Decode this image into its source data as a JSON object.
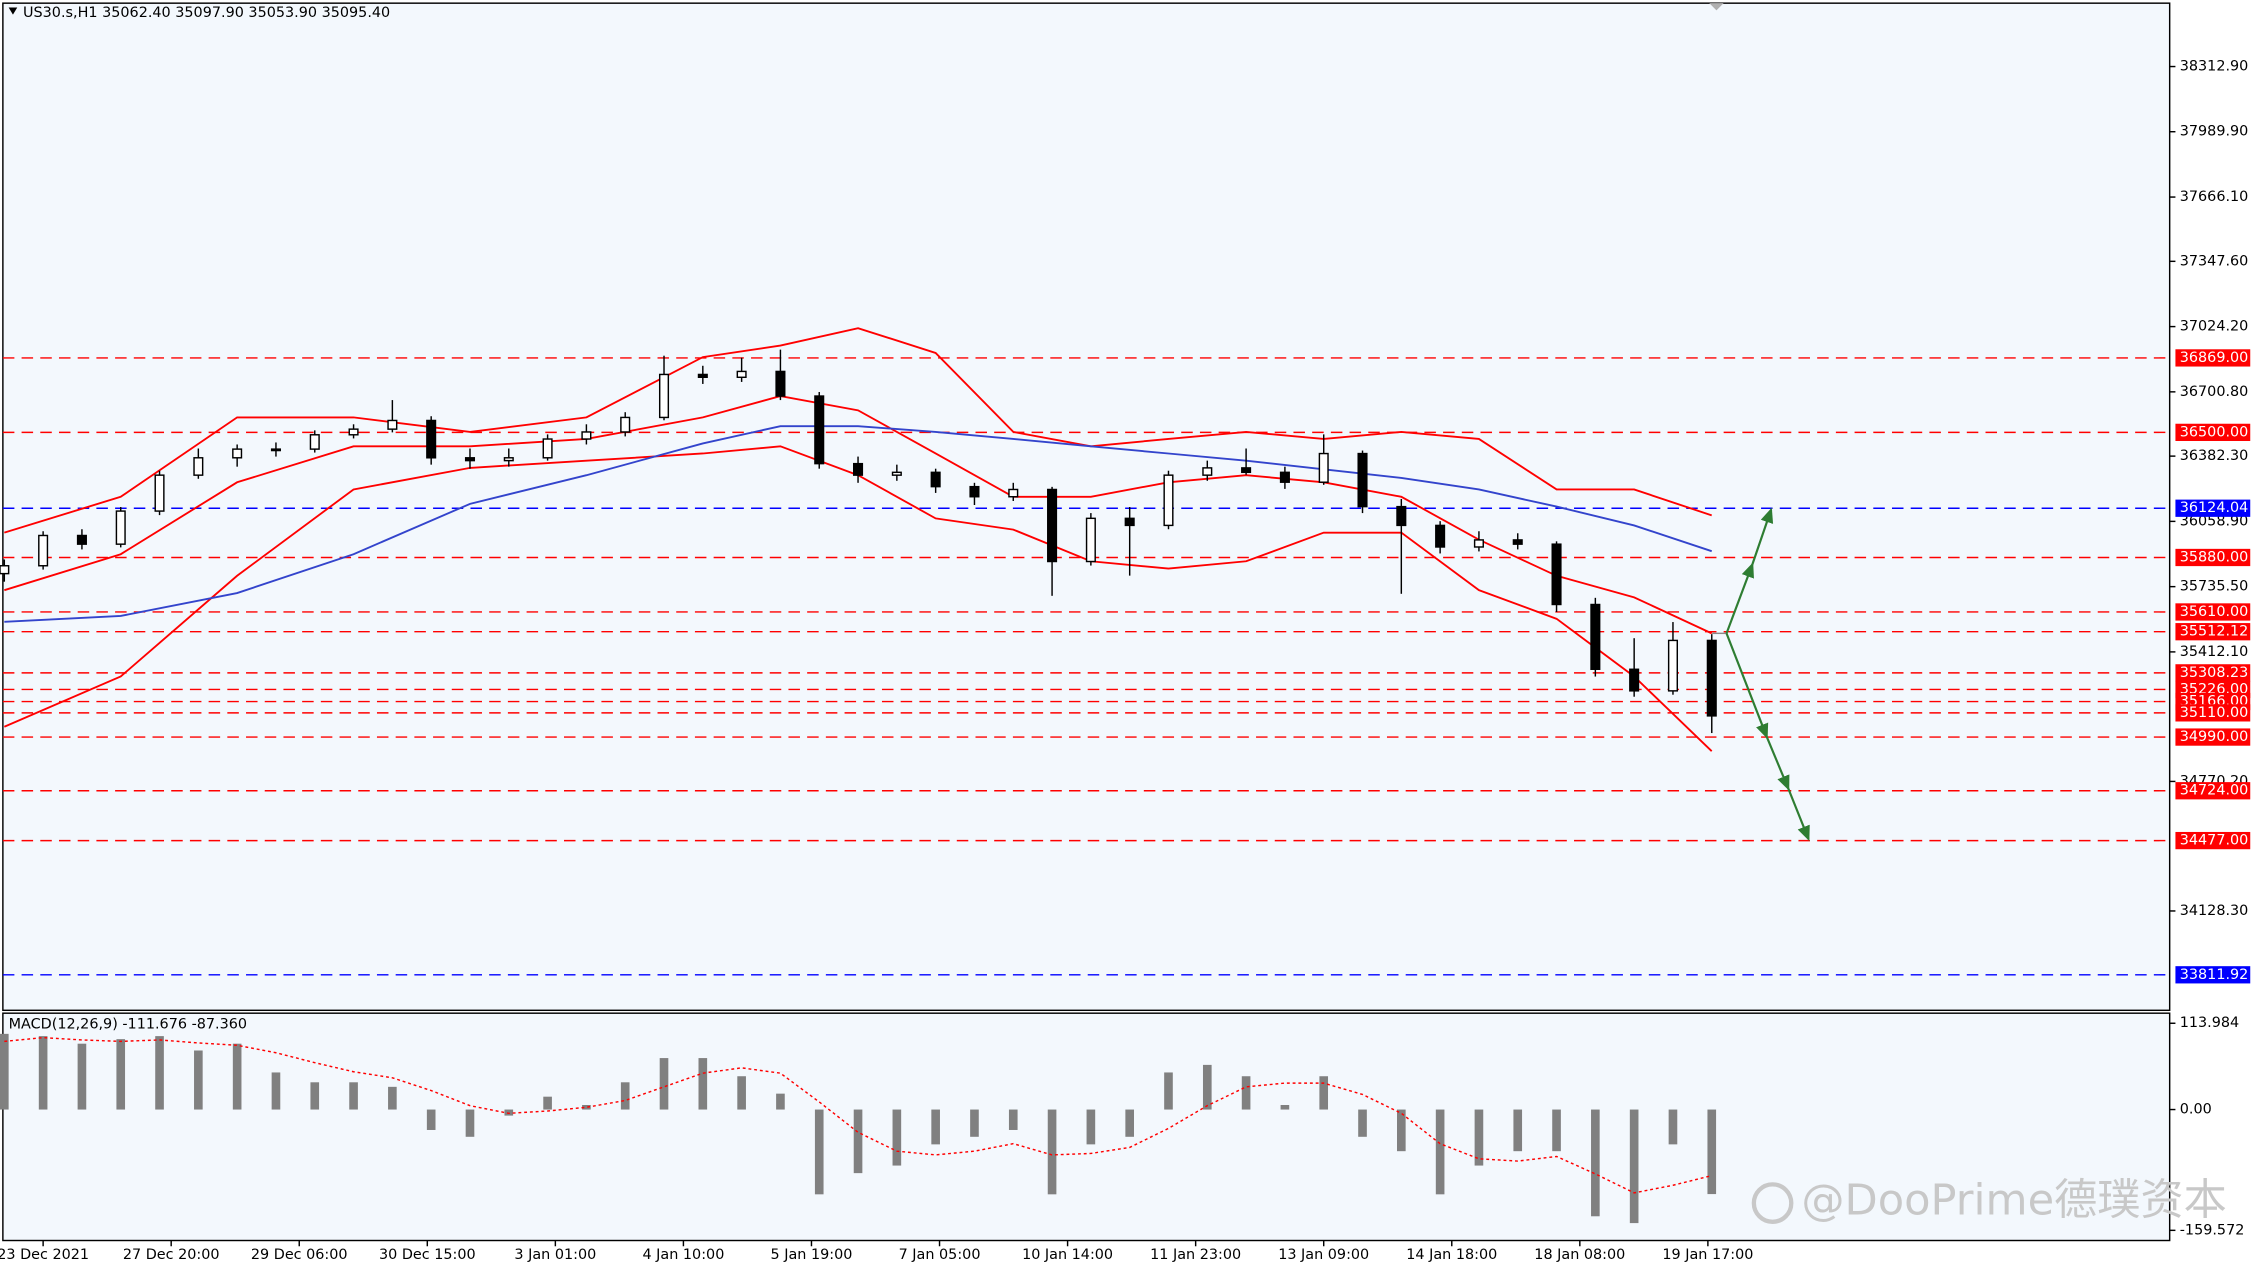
{
  "chart_data": {
    "type": "candlestick",
    "title": "US30.s,H1  35062.40 35097.90 35053.90 35095.40",
    "x": [
      0,
      10,
      20,
      30,
      40,
      50,
      60,
      70,
      80,
      90,
      100,
      110,
      120,
      130,
      140,
      150,
      160,
      170,
      180,
      190,
      200,
      210,
      220,
      230,
      240,
      250,
      260,
      270,
      280,
      290,
      300,
      310,
      320,
      330,
      340,
      350,
      360,
      370,
      380,
      390,
      400,
      410,
      420,
      430,
      440
    ],
    "open": [
      35800,
      35839,
      35989,
      35946,
      36110,
      36288,
      36374,
      36417,
      36417,
      36488,
      36516,
      36559,
      36374,
      36360,
      36374,
      36467,
      36502,
      36574,
      36787,
      36773,
      36802,
      36680,
      36345,
      36288,
      36302,
      36231,
      36181,
      36217,
      35860,
      36074,
      36039,
      36288,
      36324,
      36302,
      36253,
      36395,
      36132,
      36039,
      35932,
      35967,
      35946,
      35647,
      35326,
      35219,
      35469
    ],
    "high": [
      35870,
      36010,
      36020,
      36130,
      36310,
      36420,
      36440,
      36450,
      36510,
      36540,
      36660,
      36580,
      36420,
      36420,
      36490,
      36540,
      36600,
      36880,
      36830,
      36870,
      36910,
      36700,
      36380,
      36340,
      36320,
      36250,
      36250,
      36230,
      36100,
      36130,
      36310,
      36360,
      36420,
      36330,
      36490,
      36410,
      36170,
      36060,
      36010,
      36000,
      35960,
      35680,
      35480,
      35560,
      35500
    ],
    "low": [
      35760,
      35820,
      35920,
      35930,
      36090,
      36270,
      36330,
      36380,
      36400,
      36470,
      36500,
      36340,
      36320,
      36330,
      36360,
      36440,
      36480,
      36560,
      36740,
      36750,
      36660,
      36320,
      36250,
      36260,
      36200,
      36140,
      36160,
      35690,
      35840,
      35790,
      36020,
      36260,
      36290,
      36220,
      36240,
      36100,
      35700,
      35900,
      35910,
      35920,
      35610,
      35290,
      35190,
      35200,
      35010
    ],
    "close": [
      35839,
      35989,
      35946,
      36110,
      36288,
      36374,
      36417,
      36417,
      36488,
      36516,
      36559,
      36374,
      36360,
      36374,
      36467,
      36502,
      36574,
      36787,
      36773,
      36802,
      36680,
      36345,
      36288,
      36302,
      36231,
      36181,
      36217,
      35860,
      36074,
      36039,
      36288,
      36324,
      36302,
      36253,
      36395,
      36132,
      36039,
      35932,
      35967,
      35946,
      35647,
      35326,
      35219,
      35469,
      35095
    ],
    "color": "#000000",
    "xlim": [
      0,
      558
    ],
    "xticks": [
      {
        "value": 10,
        "label": "23 Dec 2021"
      },
      {
        "value": 43,
        "label": "27 Dec 20:00"
      },
      {
        "value": 76,
        "label": "29 Dec 06:00"
      },
      {
        "value": 109,
        "label": "30 Dec 15:00"
      },
      {
        "value": 142,
        "label": "3 Jan 01:00"
      },
      {
        "value": 175,
        "label": "4 Jan 10:00"
      },
      {
        "value": 208,
        "label": "5 Jan 19:00"
      },
      {
        "value": 241,
        "label": "7 Jan 05:00"
      },
      {
        "value": 274,
        "label": "10 Jan 14:00"
      },
      {
        "value": 307,
        "label": "11 Jan 23:00"
      },
      {
        "value": 340,
        "label": "13 Jan 09:00"
      },
      {
        "value": 373,
        "label": "14 Jan 18:00"
      },
      {
        "value": 406,
        "label": "18 Jan 08:00"
      },
      {
        "value": 439,
        "label": "19 Jan 17:00"
      }
    ],
    "ylim": [
      33636,
      38627
    ],
    "yticks": [
      {
        "value": 38312.9,
        "label": "38312.90"
      },
      {
        "value": 37989.9,
        "label": "37989.90"
      },
      {
        "value": 37666.1,
        "label": "37666.10"
      },
      {
        "value": 37347.6,
        "label": "37347.60"
      },
      {
        "value": 37024.2,
        "label": "37024.20"
      },
      {
        "value": 36700.8,
        "label": "36700.80"
      },
      {
        "value": 36382.3,
        "label": "36382.30"
      },
      {
        "value": 36058.9,
        "label": "36058.90"
      },
      {
        "value": 35735.5,
        "label": "35735.50"
      },
      {
        "value": 35412.1,
        "label": "35412.10"
      },
      {
        "value": 34770.2,
        "label": "34770.20"
      },
      {
        "value": 34128.3,
        "label": "34128.30"
      }
    ],
    "line_x": [
      0,
      30,
      60,
      90,
      120,
      150,
      180,
      200,
      220,
      240,
      260,
      280,
      300,
      320,
      340,
      360,
      380,
      400,
      420,
      440
    ],
    "lines": [
      {
        "color": "#ff0000",
        "values": [
          36003,
          36181,
          36574,
          36574,
          36502,
          36574,
          36873,
          36930,
          37016,
          36894,
          36502,
          36431,
          36467,
          36502,
          36467,
          36502,
          36467,
          36217,
          36217,
          36089
        ]
      },
      {
        "color": "#ff0000",
        "values": [
          35718,
          35896,
          36253,
          36431,
          36431,
          36467,
          36574,
          36680,
          36609,
          36395,
          36181,
          36181,
          36253,
          36288,
          36253,
          36181,
          35968,
          35789,
          35682,
          35504
        ]
      },
      {
        "color": "#ff0000",
        "values": [
          35041,
          35290,
          35789,
          36217,
          36324,
          36360,
          36395,
          36431,
          36288,
          36074,
          36018,
          35861,
          35825,
          35861,
          36003,
          36003,
          35718,
          35576,
          35290,
          34920
        ]
      },
      {
        "color": "#3344cc",
        "values": [
          35561,
          35590,
          35704,
          35896,
          36146,
          36288,
          36445,
          36531,
          36531,
          36502,
          36467,
          36431,
          36395,
          36360,
          36317,
          36274,
          36217,
          36132,
          36039,
          35911
        ]
      }
    ],
    "levels": [
      {
        "value": 36869,
        "label": "36869.00",
        "color": "#ff0000"
      },
      {
        "value": 36500,
        "label": "36500.00",
        "color": "#ff0000"
      },
      {
        "value": 36124.04,
        "label": "36124.04",
        "color": "#0000ff"
      },
      {
        "value": 35880,
        "label": "35880.00",
        "color": "#ff0000"
      },
      {
        "value": 35610,
        "label": "35610.00",
        "color": "#ff0000"
      },
      {
        "value": 35512.12,
        "label": "35512.12",
        "color": "#ff0000"
      },
      {
        "value": 35308.23,
        "label": "35308.23",
        "color": "#ff0000"
      },
      {
        "value": 35226,
        "label": "35226.00",
        "color": "#ff0000"
      },
      {
        "value": 35166,
        "label": "35166.00",
        "color": "#ff0000"
      },
      {
        "value": 35110,
        "label": "35110.00",
        "color": "#ff0000"
      },
      {
        "value": 34990,
        "label": "34990.00",
        "color": "#ff0000"
      },
      {
        "value": 34724,
        "label": "34724.00",
        "color": "#ff0000"
      },
      {
        "value": 34477,
        "label": "34477.00",
        "color": "#ff0000"
      },
      {
        "value": 33811.92,
        "label": "33811.92",
        "color": "#0000ff"
      }
    ],
    "macd": {
      "label": "MACD(12,26,9) -111.676 -87.360",
      "histogram": [
        100,
        97,
        87,
        93,
        97,
        78,
        87,
        49,
        36,
        36,
        30,
        -27,
        -36,
        -8,
        17,
        6,
        36,
        68,
        68,
        44,
        21,
        -112,
        -84,
        -74,
        -46,
        -36,
        -27,
        -112,
        -46,
        -36,
        49,
        59,
        44,
        6,
        44,
        -36,
        -55,
        -112,
        -74,
        -55,
        -55,
        -141,
        -150,
        -46,
        -111.676
      ],
      "signal": [
        90,
        95,
        92,
        90,
        92,
        88,
        85,
        75,
        62,
        50,
        42,
        25,
        5,
        -5,
        -2,
        3,
        12,
        30,
        48,
        55,
        48,
        10,
        -30,
        -55,
        -60,
        -55,
        -45,
        -60,
        -58,
        -50,
        -25,
        5,
        30,
        35,
        35,
        20,
        -5,
        -45,
        -65,
        -68,
        -62,
        -85,
        -110,
        -100,
        -87.36
      ],
      "color": "#808080",
      "signal_color": "#ff0000",
      "ylim": [
        -173,
        127.3
      ],
      "yticks": [
        113.984,
        {
          "value": 0,
          "label": "0.00"
        },
        -159.572
      ]
    }
  },
  "watermark": "@DooPrime德璞资本"
}
